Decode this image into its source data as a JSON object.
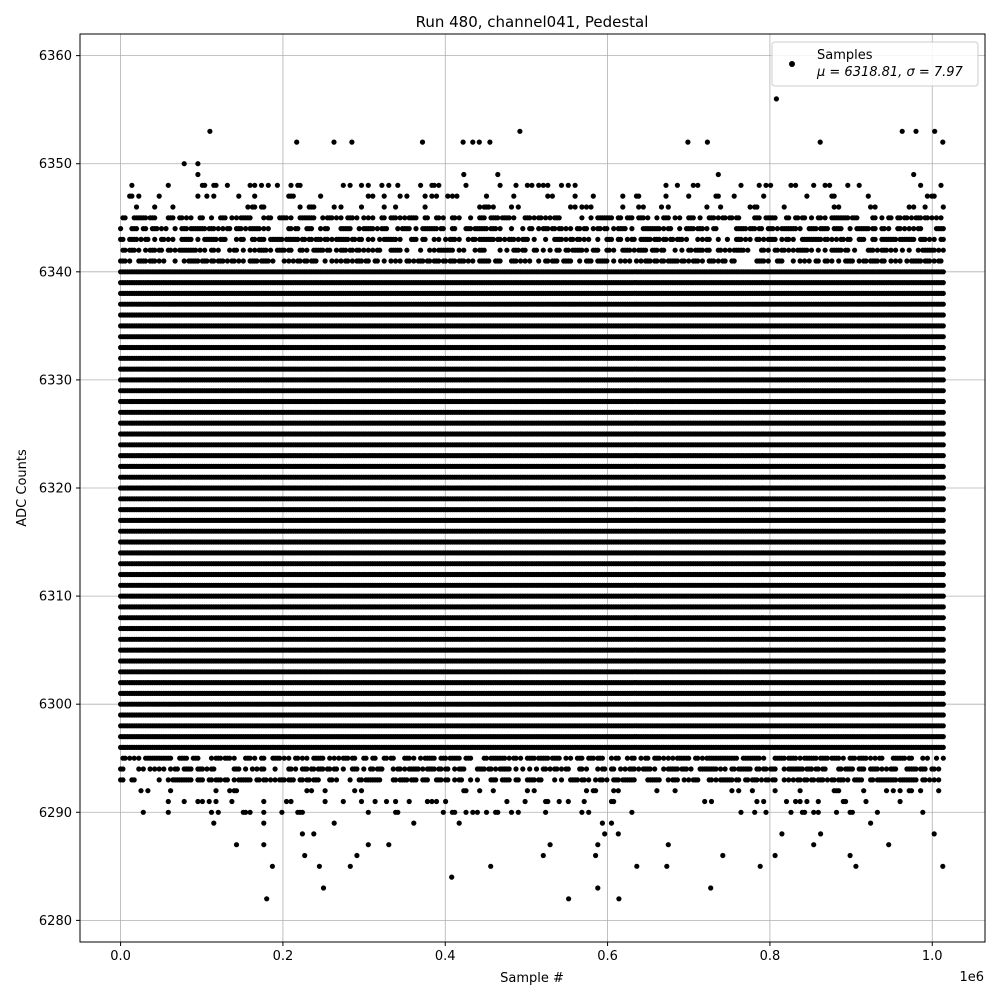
{
  "chart_data": {
    "type": "scatter",
    "title": "Run 480, channel041, Pedestal",
    "xlabel": "Sample #",
    "ylabel": "ADC Counts",
    "x_offset_label": "1e6",
    "xlim": [
      -50000,
      1065000
    ],
    "ylim": [
      6278,
      6362
    ],
    "x_ticks": [
      0,
      200000,
      400000,
      600000,
      800000,
      1000000
    ],
    "x_tick_labels": [
      "0.0",
      "0.2",
      "0.4",
      "0.6",
      "0.8",
      "1.0"
    ],
    "y_ticks": [
      6280,
      6290,
      6300,
      6310,
      6320,
      6330,
      6340,
      6350,
      6360
    ],
    "y_tick_labels": [
      "6280",
      "6290",
      "6300",
      "6310",
      "6320",
      "6330",
      "6340",
      "6350",
      "6360"
    ],
    "grid": true,
    "legend_position": "top-right",
    "series": [
      {
        "name": "Samples",
        "color": "#000000",
        "x_range": [
          0,
          1015000
        ],
        "dense_band": [
          6293,
          6345
        ],
        "outliers": [
          {
            "x": 180000,
            "y": 6282
          },
          {
            "x": 250000,
            "y": 6283
          },
          {
            "x": 408000,
            "y": 6284
          },
          {
            "x": 552000,
            "y": 6282
          },
          {
            "x": 588000,
            "y": 6283
          },
          {
            "x": 614000,
            "y": 6282
          },
          {
            "x": 727000,
            "y": 6283
          },
          {
            "x": 1013000,
            "y": 6285
          },
          {
            "x": 906000,
            "y": 6285
          },
          {
            "x": 788000,
            "y": 6285
          },
          {
            "x": 187000,
            "y": 6285
          },
          {
            "x": 245000,
            "y": 6285
          },
          {
            "x": 283000,
            "y": 6285
          },
          {
            "x": 456000,
            "y": 6285
          },
          {
            "x": 636000,
            "y": 6285
          },
          {
            "x": 673000,
            "y": 6285
          },
          {
            "x": 808000,
            "y": 6356
          },
          {
            "x": 110000,
            "y": 6353
          },
          {
            "x": 492000,
            "y": 6353
          },
          {
            "x": 963000,
            "y": 6353
          },
          {
            "x": 980000,
            "y": 6353
          },
          {
            "x": 1003000,
            "y": 6353
          },
          {
            "x": 217000,
            "y": 6352
          },
          {
            "x": 263000,
            "y": 6352
          },
          {
            "x": 285000,
            "y": 6352
          },
          {
            "x": 372000,
            "y": 6352
          },
          {
            "x": 422000,
            "y": 6352
          },
          {
            "x": 434000,
            "y": 6352
          },
          {
            "x": 442000,
            "y": 6352
          },
          {
            "x": 455000,
            "y": 6352
          },
          {
            "x": 699000,
            "y": 6352
          },
          {
            "x": 723000,
            "y": 6352
          },
          {
            "x": 862000,
            "y": 6352
          },
          {
            "x": 1013000,
            "y": 6352
          }
        ]
      }
    ],
    "legend": {
      "label": "Samples",
      "stats": "μ = 6318.81, σ = 7.97"
    }
  }
}
